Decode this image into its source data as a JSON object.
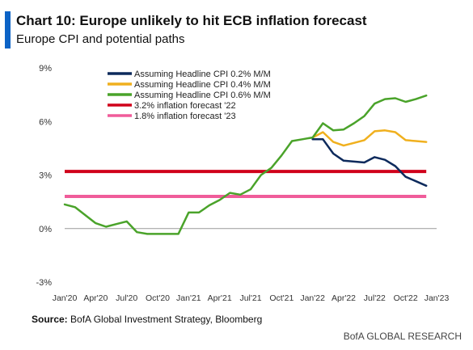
{
  "header": {
    "title": "Chart 10: Europe unlikely to hit ECB inflation forecast",
    "subtitle": "Europe CPI and potential paths",
    "accent_color": "#0c63c6"
  },
  "source": {
    "label": "Source:",
    "text": "BofA Global Investment Strategy, Bloomberg"
  },
  "footer": "BofA GLOBAL RESEARCH",
  "chart_data": {
    "type": "line",
    "x_start": "Jan'20",
    "x_end": "Jan'23",
    "x_ticks": [
      "Jan'20",
      "Apr'20",
      "Jul'20",
      "Oct'20",
      "Jan'21",
      "Apr'21",
      "Jul'21",
      "Oct'21",
      "Jan'22",
      "Apr'22",
      "Jul'22",
      "Oct'22",
      "Jan'23"
    ],
    "y_ticks": [
      "-3%",
      "0%",
      "3%",
      "6%",
      "9%"
    ],
    "ylim": [
      -3,
      9
    ],
    "ylabel": "",
    "xlabel": "",
    "grid": false,
    "legend_position": "top-left",
    "series": [
      {
        "name": "Assuming Headline CPI 0.2% M/M",
        "color": "#0d2a5c",
        "points": [
          [
            "Jan'22",
            5.0
          ],
          [
            "Feb'22",
            5.0
          ],
          [
            "Mar'22",
            4.2
          ],
          [
            "Apr'22",
            3.8
          ],
          [
            "May'22",
            3.75
          ],
          [
            "Jun'22",
            3.7
          ],
          [
            "Jul'22",
            4.0
          ],
          [
            "Aug'22",
            3.85
          ],
          [
            "Sep'22",
            3.5
          ],
          [
            "Oct'22",
            2.9
          ],
          [
            "Nov'22",
            2.65
          ],
          [
            "Dec'22",
            2.4
          ]
        ]
      },
      {
        "name": "Assuming Headline CPI 0.4% M/M",
        "color": "#f0b01e",
        "points": [
          [
            "Jan'22",
            5.1
          ],
          [
            "Feb'22",
            5.4
          ],
          [
            "Mar'22",
            4.85
          ],
          [
            "Apr'22",
            4.65
          ],
          [
            "May'22",
            4.8
          ],
          [
            "Jun'22",
            4.95
          ],
          [
            "Jul'22",
            5.45
          ],
          [
            "Aug'22",
            5.5
          ],
          [
            "Sep'22",
            5.4
          ],
          [
            "Oct'22",
            4.95
          ],
          [
            "Nov'22",
            4.9
          ],
          [
            "Dec'22",
            4.85
          ]
        ]
      },
      {
        "name": "Assuming Headline CPI 0.6% M/M",
        "color": "#4aa32a",
        "points": [
          [
            "Jan'20",
            1.35
          ],
          [
            "Feb'20",
            1.2
          ],
          [
            "Mar'20",
            0.75
          ],
          [
            "Apr'20",
            0.3
          ],
          [
            "May'20",
            0.1
          ],
          [
            "Jun'20",
            0.25
          ],
          [
            "Jul'20",
            0.4
          ],
          [
            "Aug'20",
            -0.2
          ],
          [
            "Sep'20",
            -0.3
          ],
          [
            "Oct'20",
            -0.3
          ],
          [
            "Nov'20",
            -0.3
          ],
          [
            "Dec'20",
            -0.3
          ],
          [
            "Jan'21",
            0.9
          ],
          [
            "Feb'21",
            0.9
          ],
          [
            "Mar'21",
            1.3
          ],
          [
            "Apr'21",
            1.6
          ],
          [
            "May'21",
            2.0
          ],
          [
            "Jun'21",
            1.9
          ],
          [
            "Jul'21",
            2.2
          ],
          [
            "Aug'21",
            3.0
          ],
          [
            "Sep'21",
            3.4
          ],
          [
            "Oct'21",
            4.1
          ],
          [
            "Nov'21",
            4.9
          ],
          [
            "Dec'21",
            5.0
          ],
          [
            "Jan'22",
            5.1
          ],
          [
            "Feb'22",
            5.9
          ],
          [
            "Mar'22",
            5.5
          ],
          [
            "Apr'22",
            5.55
          ],
          [
            "May'22",
            5.9
          ],
          [
            "Jun'22",
            6.3
          ],
          [
            "Jul'22",
            7.0
          ],
          [
            "Aug'22",
            7.25
          ],
          [
            "Sep'22",
            7.3
          ],
          [
            "Oct'22",
            7.1
          ],
          [
            "Nov'22",
            7.25
          ],
          [
            "Dec'22",
            7.45
          ]
        ]
      },
      {
        "name": "3.2% inflation forecast '22",
        "color": "#d0021b",
        "points": [
          [
            "Jan'20",
            3.2
          ],
          [
            "Dec'22",
            3.2
          ]
        ]
      },
      {
        "name": "1.8% inflation forecast '23",
        "color": "#f05c9a",
        "points": [
          [
            "Jan'20",
            1.8
          ],
          [
            "Dec'22",
            1.8
          ]
        ]
      }
    ]
  }
}
